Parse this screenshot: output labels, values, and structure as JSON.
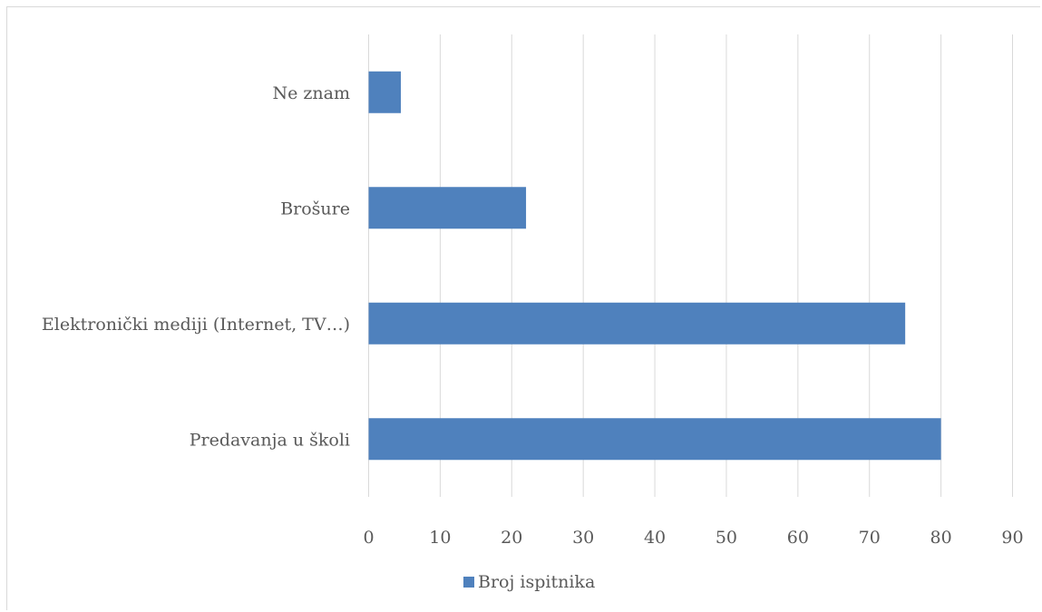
{
  "chart_data": {
    "type": "bar",
    "orientation": "horizontal",
    "categories": [
      "Ne znam",
      "Brošure",
      "Elektronički mediji (Internet, TV…)",
      "Predavanja u školi"
    ],
    "series": [
      {
        "name": "Broj ispitnika",
        "values": [
          4.5,
          22,
          75,
          80
        ],
        "color": "#4f81bd"
      }
    ],
    "xlim": [
      0,
      90
    ],
    "x_ticks": [
      0,
      10,
      20,
      30,
      40,
      50,
      60,
      70,
      80,
      90
    ],
    "grid": true,
    "legend": "bottom"
  }
}
